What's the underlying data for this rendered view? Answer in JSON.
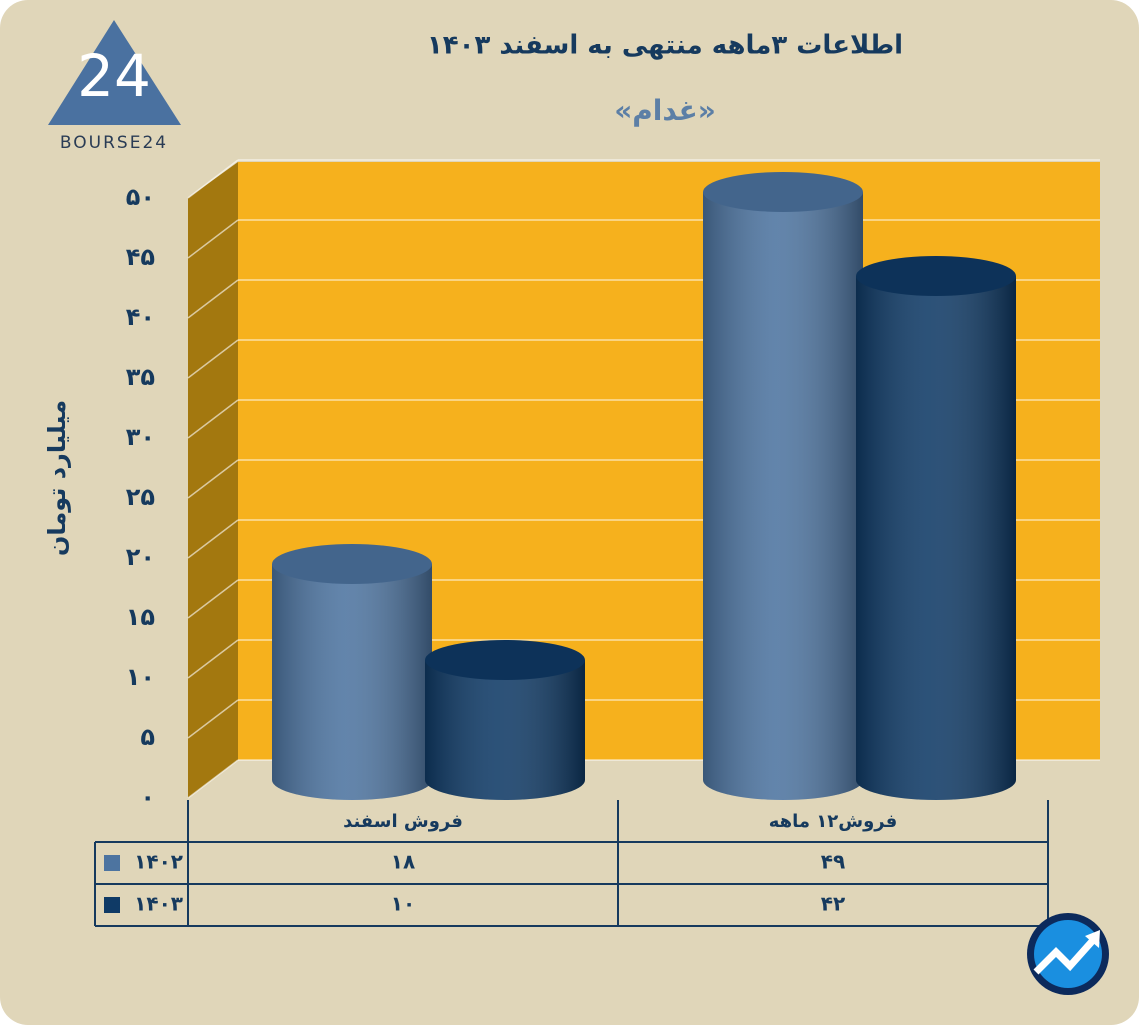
{
  "logo": {
    "text": "BOURSE24"
  },
  "chart_data": {
    "type": "cylinder-bar",
    "title": "اطلاعات  ۳ماهه منتهی به اسفند ۱۴۰۳",
    "subtitle": "«غدام»",
    "y_label": "میلیارد تومان",
    "categories": [
      "فروش اسفند",
      "فروش۱۲ ماهه"
    ],
    "series": [
      {
        "name": "۱۴۰۲",
        "color": "#4d74a0",
        "values": [
          18,
          49
        ],
        "value_labels": [
          "۱۸",
          "۴۹"
        ]
      },
      {
        "name": "۱۴۰۳",
        "color": "#0f3a66",
        "values": [
          10,
          42
        ],
        "value_labels": [
          "۱۰",
          "۴۲"
        ]
      }
    ],
    "ylim": [
      0,
      50
    ],
    "yticks": [
      {
        "value": 0,
        "label": "۰"
      },
      {
        "value": 5,
        "label": "۵"
      },
      {
        "value": 10,
        "label": "۱۰"
      },
      {
        "value": 15,
        "label": "۱۵"
      },
      {
        "value": 20,
        "label": "۲۰"
      },
      {
        "value": 25,
        "label": "۲۵"
      },
      {
        "value": 30,
        "label": "۳۰"
      },
      {
        "value": 35,
        "label": "۳۵"
      },
      {
        "value": 40,
        "label": "۴۰"
      },
      {
        "value": 45,
        "label": "۴۵"
      },
      {
        "value": 50,
        "label": "۵۰"
      }
    ],
    "grid": true,
    "wall_color": "#f6b11d",
    "side_wall_color": "#a3780f"
  }
}
